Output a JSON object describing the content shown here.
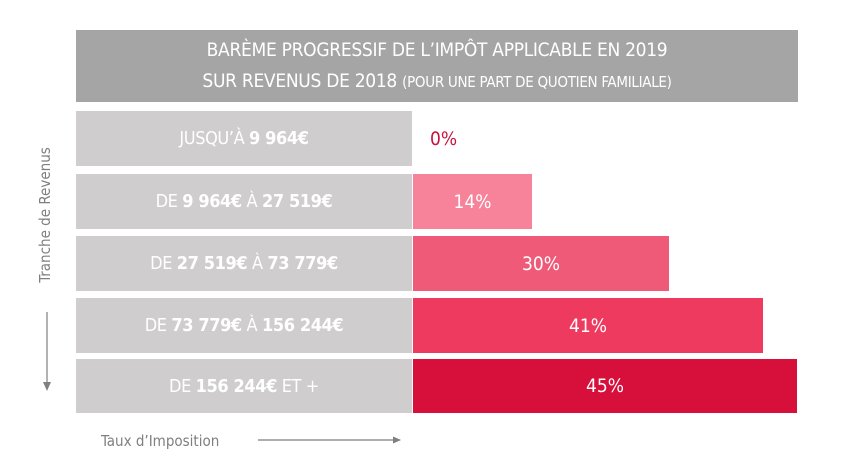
{
  "title": {
    "line1": "BARÈME PROGRESSIF DE L’IMPÔT APPLICABLE EN 2019",
    "line2_main": "SUR REVENUS DE 2018 ",
    "line2_small": "(POUR UNE PART DE QUOTIEN FAMILIALE)"
  },
  "axes": {
    "y_label": "Tranche de Revenus",
    "x_label": "Taux d’Imposition"
  },
  "colors": {
    "title_bg": "#a5a5a5",
    "label_bg": "#cfcdcd",
    "zero_text": "#c8143f"
  },
  "chart_data": {
    "type": "bar",
    "orientation": "horizontal",
    "title": "BARÈME PROGRESSIF DE L’IMPÔT APPLICABLE EN 2019 SUR REVENUS DE 2018 (POUR UNE PART DE QUOTIEN FAMILIALE)",
    "xlabel": "Taux d’Imposition",
    "ylabel": "Tranche de Revenus",
    "xlim": [
      0,
      45
    ],
    "grid": false,
    "legend": "none",
    "categories": [
      "JUSQU’À 9 964€",
      "DE 9 964€ À 27 519€",
      "DE 27 519€ À 73 779€",
      "DE 73 779€ À 156 244€",
      "DE 156 244€ ET +"
    ],
    "category_parts": [
      [
        {
          "t": "JUSQU’À ",
          "b": false
        },
        {
          "t": "9 964€",
          "b": true
        }
      ],
      [
        {
          "t": "DE ",
          "b": false
        },
        {
          "t": "9 964€",
          "b": true
        },
        {
          "t": " À ",
          "b": false
        },
        {
          "t": "27 519€",
          "b": true
        }
      ],
      [
        {
          "t": "DE ",
          "b": false
        },
        {
          "t": "27 519€",
          "b": true
        },
        {
          "t": " À ",
          "b": false
        },
        {
          "t": "73 779€",
          "b": true
        }
      ],
      [
        {
          "t": "DE ",
          "b": false
        },
        {
          "t": "73 779€",
          "b": true
        },
        {
          "t": " À ",
          "b": false
        },
        {
          "t": "156 244€",
          "b": true
        }
      ],
      [
        {
          "t": "DE ",
          "b": false
        },
        {
          "t": "156 244€",
          "b": true
        },
        {
          "t": " ET +",
          "b": false
        }
      ]
    ],
    "values": [
      0,
      14,
      30,
      41,
      45
    ],
    "value_labels": [
      "0%",
      "14%",
      "30%",
      "41%",
      "45%"
    ],
    "bar_colors": [
      "#ffffff",
      "#f6839a",
      "#ef5a78",
      "#ef3a60",
      "#d60f3b"
    ]
  }
}
